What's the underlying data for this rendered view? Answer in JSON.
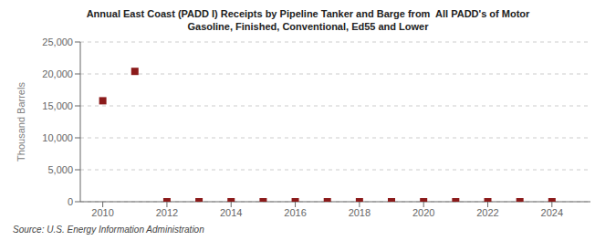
{
  "chart_data": {
    "type": "scatter",
    "title": "Annual East Coast (PADD I) Receipts by Pipeline Tanker and Barge from  All PADD's of Motor\nGasoline, Finished, Conventional, Ed55 and Lower",
    "y_label": "Thousand Barrels",
    "source": "Source: U.S. Energy Information Administration",
    "x": [
      2010,
      2011,
      2012,
      2013,
      2014,
      2015,
      2016,
      2017,
      2018,
      2019,
      2020,
      2021,
      2022,
      2023,
      2024
    ],
    "values": [
      15800,
      20400,
      0,
      0,
      0,
      0,
      0,
      0,
      0,
      0,
      0,
      0,
      0,
      0,
      0
    ],
    "color": "#8b1a1a",
    "marker": "square",
    "xlim": [
      2009.3,
      2025.2
    ],
    "ylim": [
      0,
      25000
    ],
    "xticks": [
      2010,
      2012,
      2014,
      2016,
      2018,
      2020,
      2022,
      2024
    ],
    "yticks": [
      0,
      {
        "value": 5000,
        "label": "5,000"
      },
      {
        "value": 10000,
        "label": "10,000"
      },
      {
        "value": 15000,
        "label": "15,000"
      },
      {
        "value": 20000,
        "label": "20,000"
      },
      {
        "value": 25000,
        "label": "25,000"
      }
    ],
    "grid": true
  }
}
